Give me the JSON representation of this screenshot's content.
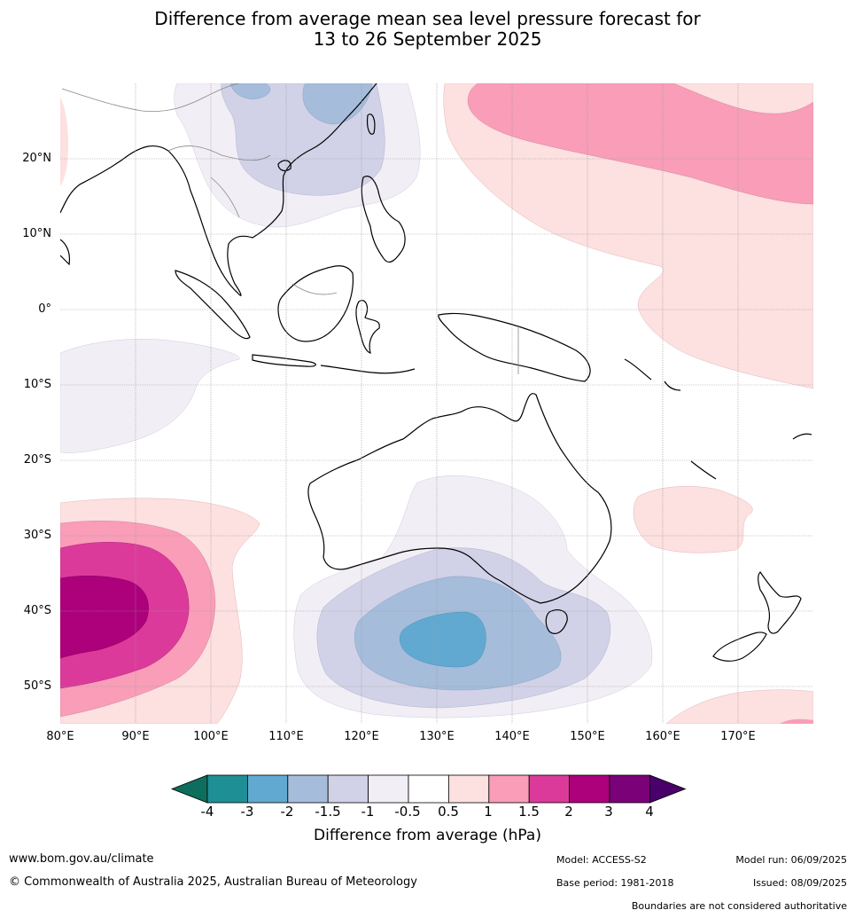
{
  "title": {
    "line1": "Difference from average mean sea level pressure forecast for",
    "line2": "13 to 26 September 2025"
  },
  "map": {
    "lat_labels": [
      "20°N",
      "10°N",
      "0°",
      "10°S",
      "20°S",
      "30°S",
      "40°S",
      "50°S"
    ],
    "lon_labels": [
      "80°E",
      "90°E",
      "100°E",
      "110°E",
      "120°E",
      "130°E",
      "140°E",
      "150°E",
      "160°E",
      "170°E"
    ],
    "region": {
      "lon_min": 80,
      "lon_max": 180,
      "lat_min": -55,
      "lat_max": 30
    }
  },
  "colorbar": {
    "ticks": [
      "-4",
      "-3",
      "-2",
      "-1.5",
      "-1",
      "-0.5",
      "0.5",
      "1",
      "1.5",
      "2",
      "3",
      "4"
    ],
    "colors": [
      "#0e6e5e",
      "#1f8f96",
      "#62a9d1",
      "#a5bcdb",
      "#d1d2e7",
      "#f2eef5",
      "#ffffff",
      "#fde0e0",
      "#f99db8",
      "#dc3a9a",
      "#ac017b",
      "#7a0177",
      "#49006a"
    ],
    "label": "Difference from average (hPa)"
  },
  "footer": {
    "website": "www.bom.gov.au/climate",
    "copyright": "© Commonwealth of Australia 2025, Australian Bureau of Meteorology",
    "model": "Model: ACCESS-S2",
    "base_period": "Base period: 1981-2018",
    "model_run": "Model run: 06/09/2025",
    "issued": "Issued: 08/09/2025",
    "disclaimer": "Boundaries are not considered authoritative"
  }
}
